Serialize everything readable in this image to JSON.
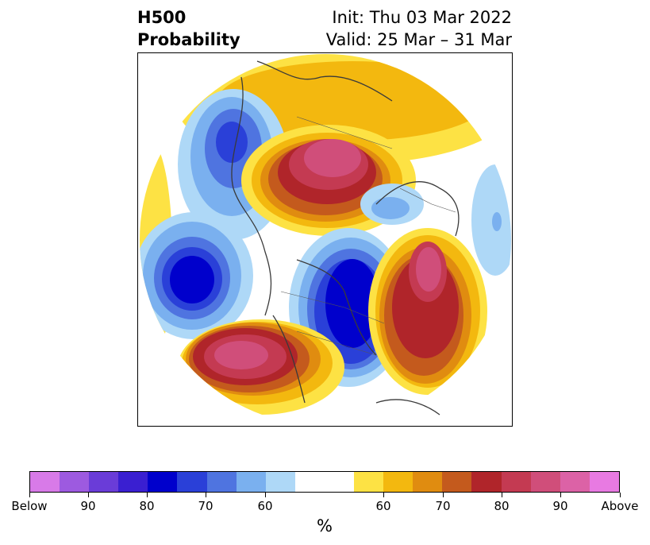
{
  "title": {
    "left_line1": "H500",
    "left_line2": "Probability",
    "right_line1": "Init: Thu 03 Mar 2022",
    "right_line2": "Valid: 25 Mar – 31 Mar"
  },
  "colorbar": {
    "colors": [
      "#d87ae8",
      "#9d5ae0",
      "#6a3cd8",
      "#3a1fd1",
      "#0000cc",
      "#2a40d8",
      "#4f74e0",
      "#7ab0ef",
      "#aed8f7",
      "#ffffff",
      "#ffffff",
      "#fde244",
      "#f3b80f",
      "#e08c10",
      "#c45a1d",
      "#b0252a",
      "#c43a52",
      "#d04e7a",
      "#dc62a6",
      "#e87ae2"
    ],
    "tick_labels": [
      "Below",
      "90",
      "80",
      "70",
      "60",
      "60",
      "70",
      "80",
      "90",
      "Above"
    ],
    "unit": "%"
  }
}
